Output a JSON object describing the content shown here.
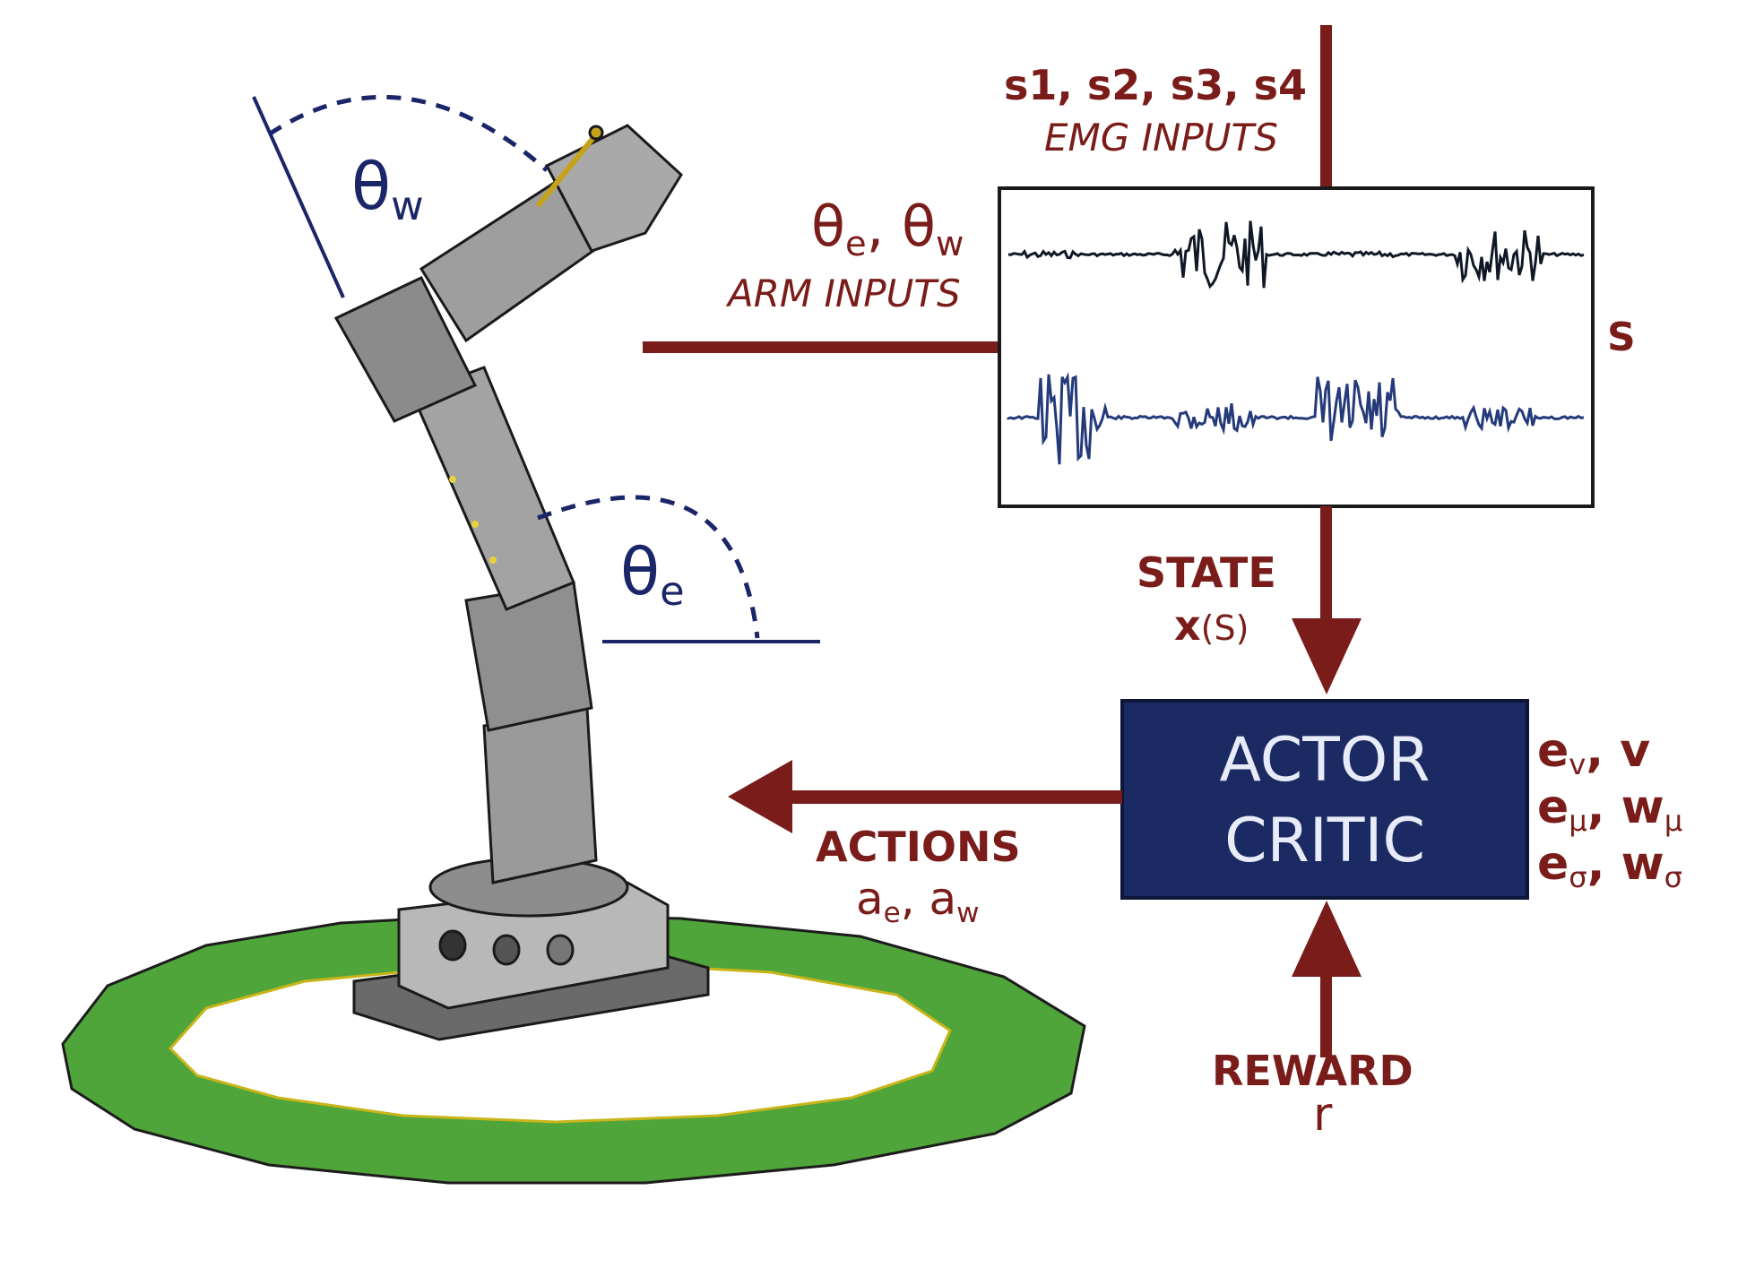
{
  "colors": {
    "arrow": "#7a1d1a",
    "actor_critic_box": "#1b2a63",
    "angle_line": "#1a2668",
    "emg_trace_top": "#101826",
    "emg_trace_bottom": "#243a7a",
    "base_ring": "#4fa53a"
  },
  "emg_inputs": {
    "signals": "s1, s2, s3, s4",
    "label": "EMG INPUTS"
  },
  "arm_inputs": {
    "theta_sym": "θ",
    "e_sub": "e",
    "w_sub": "w",
    "label": "ARM INPUTS"
  },
  "state_label": "S",
  "state": {
    "label": "STATE",
    "formula_x": "x",
    "formula_arg": "(S)"
  },
  "actor_critic": {
    "line1": "ACTOR",
    "line2": "CRITIC"
  },
  "traces": {
    "e_v": {
      "base": "e",
      "sub": "v"
    },
    "v": "v",
    "e_mu": {
      "base": "e",
      "sub": "μ"
    },
    "w_mu": {
      "base": "w",
      "sub": "μ"
    },
    "e_sigma": {
      "base": "e",
      "sub": "σ"
    },
    "w_sigma": {
      "base": "w",
      "sub": "σ"
    }
  },
  "actions": {
    "label": "ACTIONS",
    "a": "a",
    "e_sub": "e",
    "w_sub": "w"
  },
  "reward": {
    "label": "REWARD",
    "symbol": "r"
  },
  "angles": {
    "theta": "θ",
    "wrist_sub": "w",
    "elbow_sub": "e"
  }
}
